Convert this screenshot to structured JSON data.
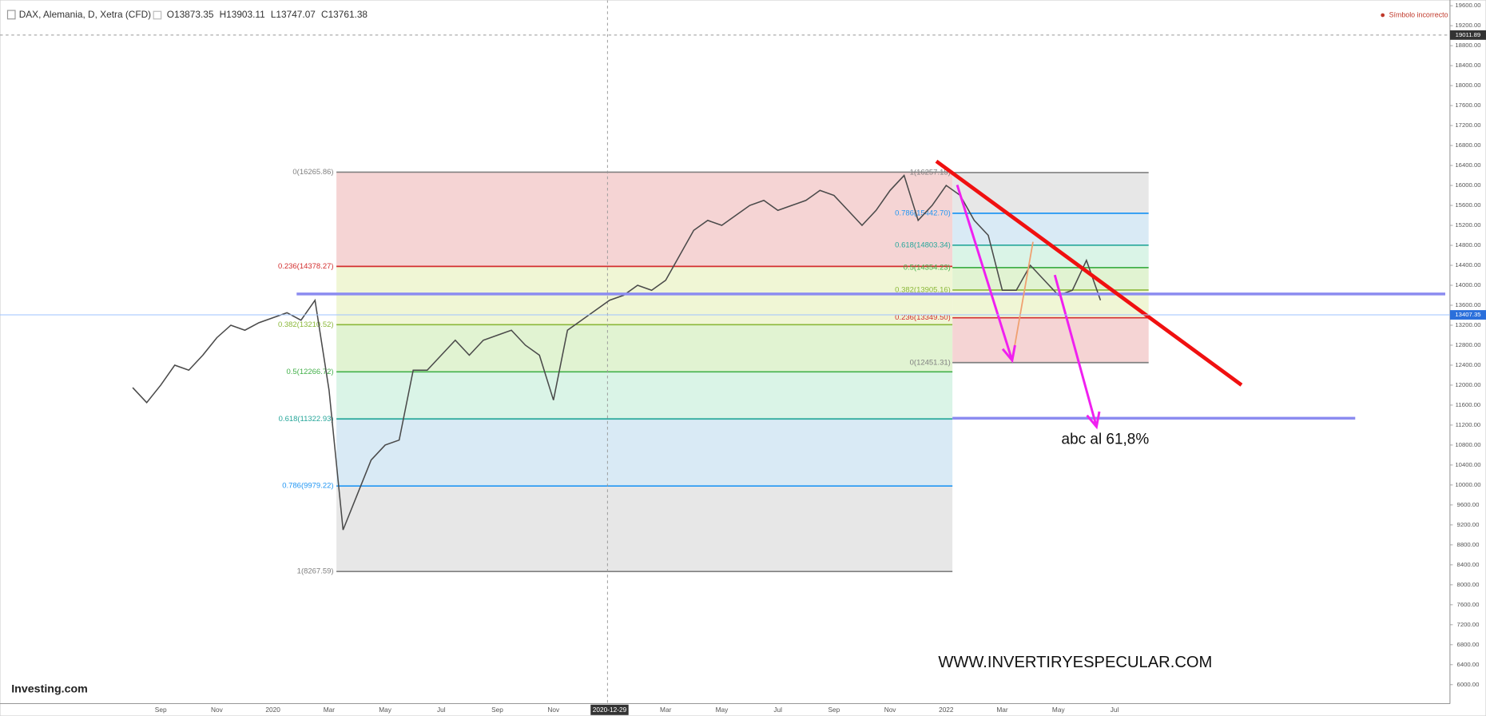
{
  "chart_data": {
    "type": "line",
    "title": "DAX, Alemania, D, Xetra (CFD)",
    "ohlc_labels": [
      "O13873.35",
      "H13903.11",
      "L13747.07",
      "C13761.38"
    ],
    "notice": "Símbolo incorrecto",
    "brand": "Investing.com",
    "annotations": [
      "abc al 61,8%",
      "WWW.INVERTIRYESPECULAR.COM"
    ],
    "categories": [
      null,
      null,
      "Sep",
      null,
      null,
      null,
      "Nov",
      null,
      null,
      null,
      "2020",
      null,
      null,
      null,
      "Mar",
      null,
      null,
      null,
      "May",
      null,
      null,
      null,
      "Jul",
      null,
      null,
      null,
      "Sep",
      null,
      null,
      null,
      "Nov",
      null,
      null,
      null,
      "2020-12-29",
      null,
      null,
      null,
      "Mar",
      null,
      null,
      null,
      "May",
      null,
      null,
      null,
      "Jul",
      null,
      null,
      null,
      "Sep",
      null,
      null,
      null,
      "Nov",
      null,
      null,
      null,
      "2022",
      null,
      null,
      null,
      "Mar",
      null,
      null,
      null,
      "May",
      null,
      null,
      null,
      "Jul"
    ],
    "series": [
      {
        "name": "DAX",
        "color": "#4a4a4a",
        "values": [
          11950,
          11650,
          12000,
          12400,
          12300,
          12600,
          12950,
          13200,
          13100,
          13250,
          13350,
          13450,
          13300,
          13700,
          11900,
          9100,
          9800,
          10500,
          10800,
          10900,
          12300,
          12300,
          12600,
          12900,
          12600,
          12900,
          13000,
          13100,
          12800,
          12600,
          11700,
          13100,
          13300,
          13500,
          13700,
          13800,
          14000,
          13900,
          14100,
          14600,
          15100,
          15300,
          15200,
          15400,
          15600,
          15700,
          15500,
          15600,
          15700,
          15900,
          15800,
          15500,
          15200,
          15500,
          15900,
          16200,
          15300,
          15600,
          16000,
          15800,
          15300,
          15000,
          13900,
          13900,
          14400,
          14100,
          13800,
          13900,
          14500,
          13700,
          null
        ]
      }
    ],
    "ylim": [
      5620,
      19714
    ],
    "yticks": [
      {
        "value": 6000,
        "label": "6000.00"
      },
      {
        "value": 6400,
        "label": "6400.00"
      },
      {
        "value": 6800,
        "label": "6800.00"
      },
      {
        "value": 7200,
        "label": "7200.00"
      },
      {
        "value": 7600,
        "label": "7600.00"
      },
      {
        "value": 8000,
        "label": "8000.00"
      },
      {
        "value": 8400,
        "label": "8400.00"
      },
      {
        "value": 8800,
        "label": "8800.00"
      },
      {
        "value": 9200,
        "label": "9200.00"
      },
      {
        "value": 9600,
        "label": "9600.00"
      },
      {
        "value": 10000,
        "label": "10000.00"
      },
      {
        "value": 10400,
        "label": "10400.00"
      },
      {
        "value": 10800,
        "label": "10800.00"
      },
      {
        "value": 11200,
        "label": "11200.00"
      },
      {
        "value": 11600,
        "label": "11600.00"
      },
      {
        "value": 12000,
        "label": "12000.00"
      },
      {
        "value": 12400,
        "label": "12400.00"
      },
      {
        "value": 12800,
        "label": "12800.00"
      },
      {
        "value": 13200,
        "label": "13200.00"
      },
      {
        "value": 13600,
        "label": "13600.00"
      },
      {
        "value": 14000,
        "label": "14000.00"
      },
      {
        "value": 14400,
        "label": "14400.00"
      },
      {
        "value": 14800,
        "label": "14800.00"
      },
      {
        "value": 15200,
        "label": "15200.00"
      },
      {
        "value": 15600,
        "label": "15600.00"
      },
      {
        "value": 16000,
        "label": "16000.00"
      },
      {
        "value": 16400,
        "label": "16400.00"
      },
      {
        "value": 16800,
        "label": "16800.00"
      },
      {
        "value": 17200,
        "label": "17200.00"
      },
      {
        "value": 17600,
        "label": "17600.00"
      },
      {
        "value": 18000,
        "label": "18000.00"
      },
      {
        "value": 18400,
        "label": "18400.00"
      },
      {
        "value": 18800,
        "label": "18800.00"
      },
      {
        "value": 19200,
        "label": "19200.00"
      },
      {
        "value": 19600,
        "label": "19600.00"
      }
    ],
    "grid": false,
    "last_price": 13407.35,
    "crosshair_price": 19011.89,
    "fib_retracements": [
      {
        "levels": [
          {
            "value": 16265.86,
            "label": "0(16265.86)",
            "color": "#808080",
            "fill": "#f4cfcf"
          },
          {
            "value": 14378.27,
            "label": "0.236(14378.27)",
            "color": "#d32f2f",
            "fill": "#eef5d0"
          },
          {
            "value": 13210.52,
            "label": "0.382(13210.52)",
            "color": "#8bb83a",
            "fill": "#def2cd"
          },
          {
            "value": 12266.72,
            "label": "0.5(12266.72)",
            "color": "#43b04a",
            "fill": "#d6f3e4"
          },
          {
            "value": 11322.93,
            "label": "0.618(11322.93)",
            "color": "#26a69a",
            "fill": "#d5e8f4"
          },
          {
            "value": 9979.22,
            "label": "0.786(9979.22)",
            "color": "#2196f3",
            "fill": "#e4e4e4"
          },
          {
            "value": 8267.59,
            "label": "1(8267.59)",
            "color": "#808080"
          }
        ]
      },
      {
        "levels": [
          {
            "value": 16257.15,
            "label": "1(16257.15)",
            "color": "#808080",
            "fill": "#e4e4e4"
          },
          {
            "value": 15442.7,
            "label": "0.786(15442.70)",
            "color": "#2196f3",
            "fill": "#d5e8f4"
          },
          {
            "value": 14803.34,
            "label": "0.618(14803.34)",
            "color": "#26a69a",
            "fill": "#d6f3e4"
          },
          {
            "value": 14354.23,
            "label": "0.5(14354.23)",
            "color": "#43b04a",
            "fill": "#def2cd"
          },
          {
            "value": 13905.16,
            "label": "0.382(13905.16)",
            "color": "#8bb83a",
            "fill": "#eef5d0"
          },
          {
            "value": 13349.5,
            "label": "0.236(13349.50)",
            "color": "#d32f2f",
            "fill": "#f4cfcf"
          },
          {
            "value": 12451.31,
            "label": "0(12451.31)",
            "color": "#808080"
          }
        ]
      }
    ]
  }
}
